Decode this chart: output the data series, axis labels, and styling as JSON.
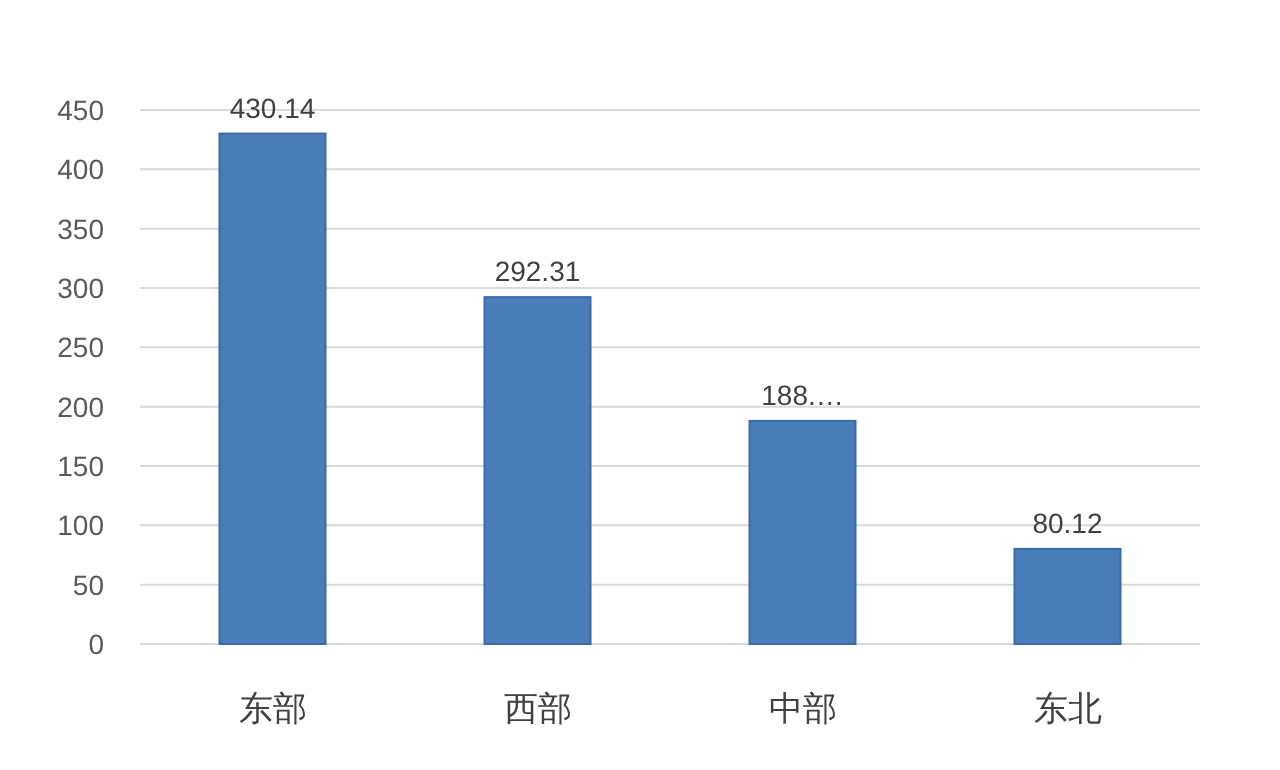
{
  "chart_data": {
    "type": "bar",
    "categories": [
      "东部",
      "西部",
      "中部",
      "东北"
    ],
    "values": [
      430.14,
      292.31,
      188,
      80.12
    ],
    "value_labels": [
      "430.14",
      "292.31",
      "188.…",
      "80.12"
    ],
    "color": "#4a7ebb",
    "ylim": [
      0,
      450
    ],
    "yticks": [
      0,
      50,
      100,
      150,
      200,
      250,
      300,
      350,
      400,
      450
    ],
    "grid": "y"
  }
}
